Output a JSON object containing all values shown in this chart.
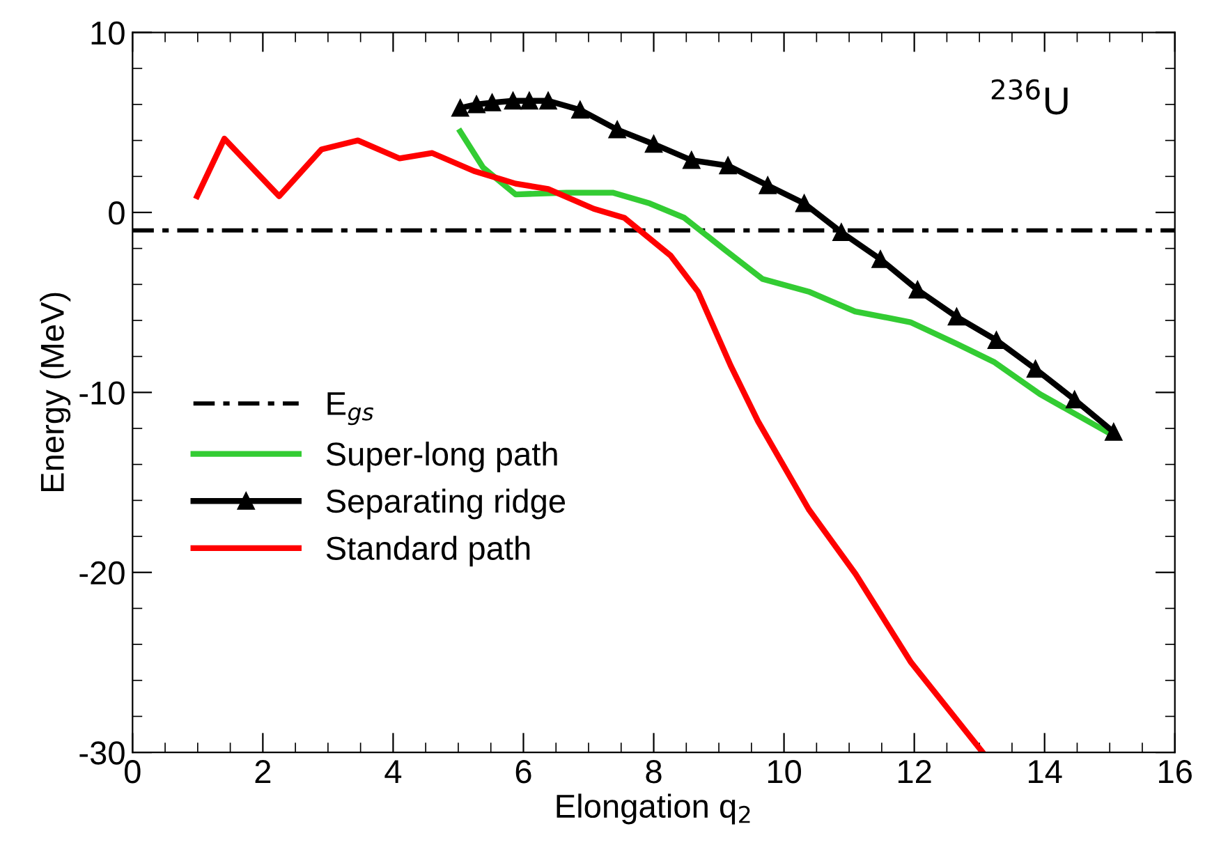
{
  "chart_data": {
    "type": "line",
    "xlabel": "Elongation q$_{2}$",
    "ylabel": "Energy (MeV)",
    "xlim": [
      0,
      16
    ],
    "xticks": [
      0,
      2,
      4,
      6,
      8,
      10,
      12,
      14,
      16
    ],
    "ylim": [
      -30,
      10
    ],
    "yticks": [
      -30,
      -20,
      -10,
      0,
      10
    ],
    "grid": false,
    "legend": "left",
    "annotations": [
      "$^{236}$U"
    ],
    "ref_lines": [
      {
        "axis": "y",
        "value": -1.0,
        "label": "E$_{gs}$",
        "color": "#000000",
        "line_style": "dashdot"
      }
    ],
    "series": [
      {
        "name": "Super-long path",
        "color": "#33cc33",
        "marker": "none",
        "x": [
          5.03,
          5.38,
          5.88,
          6.66,
          7.37,
          7.94,
          8.47,
          9.1,
          9.67,
          10.38,
          11.09,
          11.94,
          12.65,
          13.22,
          13.93,
          15.06
        ],
        "values": [
          4.5,
          2.5,
          1.0,
          1.1,
          1.1,
          0.5,
          -0.3,
          -2.1,
          -3.7,
          -4.4,
          -5.5,
          -6.1,
          -7.3,
          -8.3,
          -10.1,
          -12.4
        ]
      },
      {
        "name": "Separating ridge",
        "color": "#000000",
        "marker": "triangle",
        "x": [
          5.03,
          5.28,
          5.52,
          5.84,
          6.09,
          6.38,
          6.87,
          7.44,
          8.0,
          8.58,
          9.14,
          9.75,
          10.31,
          10.88,
          11.48,
          12.05,
          12.65,
          13.26,
          13.86,
          14.46,
          15.06
        ],
        "values": [
          5.8,
          6.0,
          6.1,
          6.2,
          6.2,
          6.2,
          5.7,
          4.6,
          3.8,
          2.9,
          2.6,
          1.5,
          0.5,
          -1.1,
          -2.6,
          -4.3,
          -5.8,
          -7.1,
          -8.7,
          -10.4,
          -12.2
        ]
      },
      {
        "name": "Standard path",
        "color": "#ff0000",
        "marker": "none",
        "x": [
          0.99,
          1.41,
          2.25,
          2.9,
          3.46,
          4.1,
          4.6,
          5.24,
          5.88,
          6.38,
          7.08,
          7.55,
          8.26,
          8.68,
          9.18,
          9.6,
          10.38,
          11.1,
          11.95,
          13.05
        ],
        "values": [
          0.9,
          4.1,
          0.9,
          3.5,
          4.0,
          3.0,
          3.3,
          2.3,
          1.6,
          1.3,
          0.2,
          -0.3,
          -2.4,
          -4.4,
          -8.5,
          -11.6,
          -16.5,
          -20.1,
          -25.0,
          -30.0
        ]
      }
    ]
  }
}
